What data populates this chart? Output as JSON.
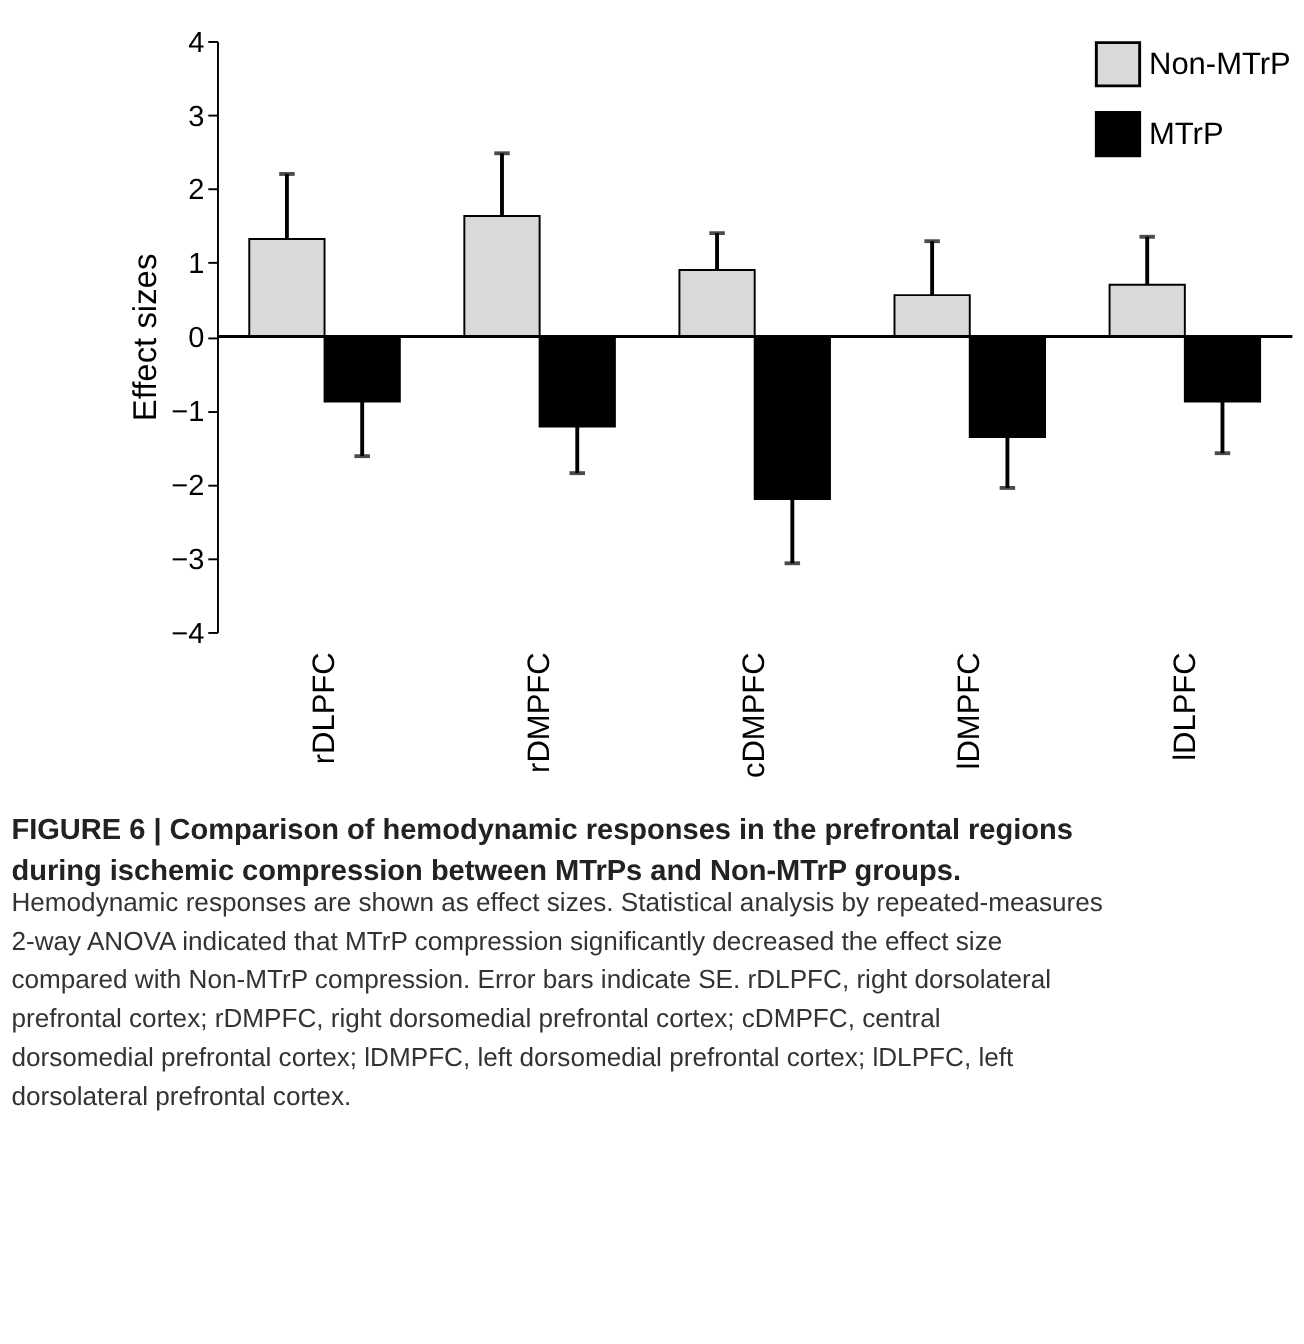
{
  "chart_data": {
    "type": "bar",
    "title": "FIGURE 6 | Comparison of hemodynamic responses in the prefrontal regions during ischemic compression between MTrPs and Non-MTrP groups.",
    "ylabel": "Effect sizes",
    "categories": [
      "rDLPFC",
      "rDMPFC",
      "cDMPFC",
      "lDMPFC",
      "lDLPFC"
    ],
    "series": [
      {
        "name": "Non-MTrP",
        "color": "#d9d9d9",
        "values": [
          1.32,
          1.63,
          0.9,
          0.56,
          0.7
        ],
        "errors": [
          [
            1.32,
            2.2
          ],
          [
            1.63,
            2.48
          ],
          [
            0.9,
            1.4
          ],
          [
            0.56,
            1.29
          ],
          [
            0.7,
            1.35
          ]
        ]
      },
      {
        "name": "MTrP",
        "color": "#000000",
        "values": [
          -0.88,
          -1.22,
          -2.2,
          -1.36,
          -0.88
        ],
        "errors": [
          [
            -1.62,
            -0.88
          ],
          [
            -1.85,
            -1.22
          ],
          [
            -3.07,
            -2.2
          ],
          [
            -2.05,
            -1.36
          ],
          [
            -1.58,
            -0.88
          ]
        ]
      }
    ],
    "ylim": [
      -4,
      4
    ],
    "yticks": [
      -4,
      -3,
      -2,
      -1,
      0,
      1,
      2,
      3,
      4
    ],
    "grid": false,
    "ref_lines": [
      {
        "axis": "y",
        "value": 0,
        "color": "#000000"
      }
    ],
    "legend": "top right",
    "annotations": [
      "Hemodynamic responses are shown as effect sizes. Statistical analysis by repeated-measures 2-way ANOVA indicated that MTrP compression significantly decreased the effect size compared with Non-MTrP compression. Error bars indicate SE. rDLPFC, right dorsolateral prefrontal cortex; rDMPFC, right dorsomedial prefrontal cortex; cDMPFC, central dorsomedial prefrontal cortex; lDMPFC, left dorsomedial prefrontal cortex; lDLPFC, left dorsolateral prefrontal cortex."
    ]
  }
}
